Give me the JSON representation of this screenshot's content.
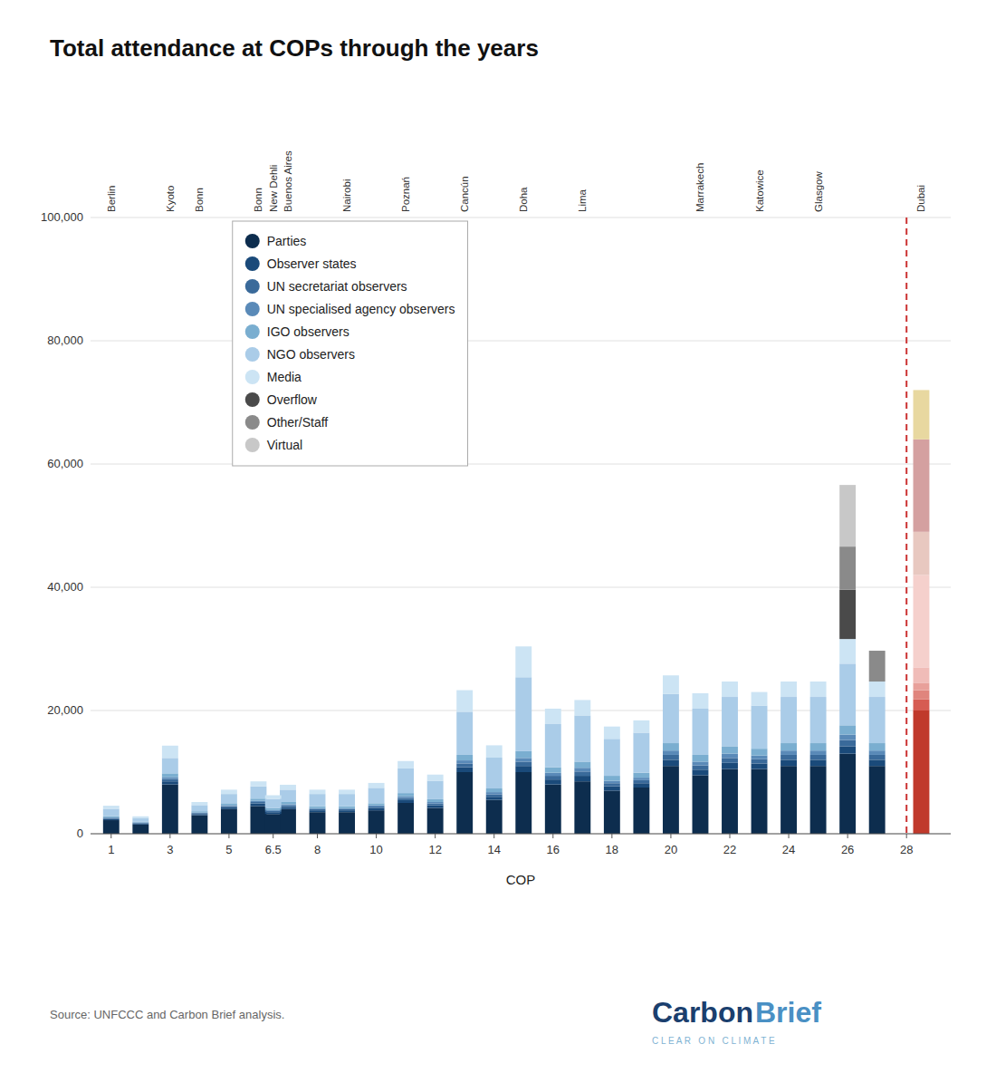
{
  "chart_data": {
    "type": "bar",
    "stacked": true,
    "title": "Total attendance at COPs through the years",
    "x_label": "COP",
    "source": "Source: UNFCCC and Carbon Brief analysis.",
    "x": [
      1,
      2,
      3,
      4,
      5,
      6,
      6.5,
      7,
      8,
      9,
      10,
      11,
      12,
      13,
      14,
      15,
      16,
      17,
      18,
      19,
      20,
      21,
      22,
      23,
      24,
      25,
      26,
      27,
      28.5
    ],
    "xlim": [
      0.3,
      29.5
    ],
    "xticks": [
      1,
      3,
      5,
      6.5,
      8,
      10,
      12,
      14,
      16,
      18,
      20,
      22,
      24,
      26,
      28
    ],
    "x2lim": [
      0.3,
      29.5
    ],
    "x2ticks": [
      {
        "value": 1,
        "label": "Berlin"
      },
      {
        "value": 3,
        "label": "Kyoto"
      },
      {
        "value": 4,
        "label": "Bonn"
      },
      {
        "value": 6,
        "label": "Bonn"
      },
      {
        "value": 6.5,
        "label": "New Dehli"
      },
      {
        "value": 7,
        "label": "Buenos Aires"
      },
      {
        "value": 9,
        "label": "Nairobi"
      },
      {
        "value": 11,
        "label": "Poznań"
      },
      {
        "value": 13,
        "label": "Cancún"
      },
      {
        "value": 15,
        "label": "Doha"
      },
      {
        "value": 17,
        "label": "Lima"
      },
      {
        "value": 21,
        "label": "Marrakech"
      },
      {
        "value": 23,
        "label": "Katowice"
      },
      {
        "value": 25,
        "label": "Glasgow"
      },
      {
        "value": 28.5,
        "label": "Dubai"
      }
    ],
    "ylim": [
      0,
      100000
    ],
    "yticks": [
      0,
      {
        "value": 20000,
        "label": "20,000"
      },
      {
        "value": 40000,
        "label": "40,000"
      },
      {
        "value": 60000,
        "label": "60,000"
      },
      {
        "value": 80000,
        "label": "80,000"
      },
      {
        "value": 100000,
        "label": "100,000"
      }
    ],
    "grid": true,
    "legend": "upper left",
    "reference_lines": [
      {
        "x": 28,
        "color": "#cc3333",
        "line_style": "dashed"
      }
    ],
    "annotations": [
      {
        "text": "Carbon",
        "color": "#1b3f6e"
      },
      {
        "text": "Brief",
        "color": "#4a90c4"
      },
      {
        "text": "C L E A R   O N   C L I M A T E",
        "color": "#7fb3d3"
      }
    ],
    "series": [
      {
        "name": "Parties",
        "color": "#0d2d4e",
        "colors": [
          "#0d2d4e",
          "#0d2d4e",
          "#0d2d4e",
          "#0d2d4e",
          "#0d2d4e",
          "#0d2d4e",
          "#0d2d4e",
          "#0d2d4e",
          "#0d2d4e",
          "#0d2d4e",
          "#0d2d4e",
          "#0d2d4e",
          "#0d2d4e",
          "#0d2d4e",
          "#0d2d4e",
          "#0d2d4e",
          "#0d2d4e",
          "#0d2d4e",
          "#0d2d4e",
          "#0d2d4e",
          "#0d2d4e",
          "#0d2d4e",
          "#0d2d4e",
          "#0d2d4e",
          "#0d2d4e",
          "#0d2d4e",
          "#0d2d4e",
          "#0d2d4e",
          "#c0392b"
        ],
        "values": [
          2200,
          1500,
          8000,
          3000,
          4000,
          4500,
          3200,
          4000,
          3500,
          3500,
          3800,
          5000,
          4200,
          10000,
          5500,
          10000,
          8000,
          8500,
          7000,
          7500,
          11000,
          9500,
          10500,
          10500,
          11000,
          11000,
          13000,
          11000,
          20000
        ]
      },
      {
        "name": "Observer states",
        "color": "#1a4a7a",
        "colors": [
          "#1a4a7a",
          "#1a4a7a",
          "#1a4a7a",
          "#1a4a7a",
          "#1a4a7a",
          "#1a4a7a",
          "#1a4a7a",
          "#1a4a7a",
          "#1a4a7a",
          "#1a4a7a",
          "#1a4a7a",
          "#1a4a7a",
          "#1a4a7a",
          "#1a4a7a",
          "#1a4a7a",
          "#1a4a7a",
          "#1a4a7a",
          "#1a4a7a",
          "#1a4a7a",
          "#1a4a7a",
          "#1a4a7a",
          "#1a4a7a",
          "#1a4a7a",
          "#1a4a7a",
          "#1a4a7a",
          "#1a4a7a",
          "#1a4a7a",
          "#1a4a7a",
          "#d65c52"
        ],
        "values": [
          200,
          150,
          500,
          200,
          300,
          400,
          300,
          350,
          300,
          300,
          350,
          450,
          400,
          800,
          500,
          1000,
          800,
          900,
          700,
          700,
          1000,
          900,
          1000,
          900,
          1000,
          1000,
          1200,
          1000,
          1800
        ]
      },
      {
        "name": "UN secretariat observers",
        "color": "#3a6a9a",
        "colors": [
          "#3a6a9a",
          "#3a6a9a",
          "#3a6a9a",
          "#3a6a9a",
          "#3a6a9a",
          "#3a6a9a",
          "#3a6a9a",
          "#3a6a9a",
          "#3a6a9a",
          "#3a6a9a",
          "#3a6a9a",
          "#3a6a9a",
          "#3a6a9a",
          "#3a6a9a",
          "#3a6a9a",
          "#3a6a9a",
          "#3a6a9a",
          "#3a6a9a",
          "#3a6a9a",
          "#3a6a9a",
          "#3a6a9a",
          "#3a6a9a",
          "#3a6a9a",
          "#3a6a9a",
          "#3a6a9a",
          "#3a6a9a",
          "#3a6a9a",
          "#3a6a9a",
          "#e0857d"
        ],
        "values": [
          150,
          100,
          400,
          150,
          200,
          250,
          200,
          250,
          200,
          200,
          250,
          350,
          300,
          600,
          400,
          700,
          600,
          700,
          500,
          500,
          800,
          700,
          800,
          700,
          800,
          800,
          1000,
          800,
          1500
        ]
      },
      {
        "name": "UN specialised agency observers",
        "color": "#5a8ab8",
        "colors": [
          "#5a8ab8",
          "#5a8ab8",
          "#5a8ab8",
          "#5a8ab8",
          "#5a8ab8",
          "#5a8ab8",
          "#5a8ab8",
          "#5a8ab8",
          "#5a8ab8",
          "#5a8ab8",
          "#5a8ab8",
          "#5a8ab8",
          "#5a8ab8",
          "#5a8ab8",
          "#5a8ab8",
          "#5a8ab8",
          "#5a8ab8",
          "#5a8ab8",
          "#5a8ab8",
          "#5a8ab8",
          "#5a8ab8",
          "#5a8ab8",
          "#5a8ab8",
          "#5a8ab8",
          "#5a8ab8",
          "#5a8ab8",
          "#5a8ab8",
          "#5a8ab8",
          "#e8a09a"
        ],
        "values": [
          100,
          80,
          300,
          100,
          150,
          200,
          150,
          200,
          150,
          150,
          200,
          300,
          250,
          500,
          350,
          600,
          500,
          600,
          400,
          400,
          700,
          600,
          700,
          600,
          700,
          700,
          900,
          700,
          1200
        ]
      },
      {
        "name": "IGO observers",
        "color": "#7aaed0",
        "colors": [
          "#7aaed0",
          "#7aaed0",
          "#7aaed0",
          "#7aaed0",
          "#7aaed0",
          "#7aaed0",
          "#7aaed0",
          "#7aaed0",
          "#7aaed0",
          "#7aaed0",
          "#7aaed0",
          "#7aaed0",
          "#7aaed0",
          "#7aaed0",
          "#7aaed0",
          "#7aaed0",
          "#7aaed0",
          "#7aaed0",
          "#7aaed0",
          "#7aaed0",
          "#7aaed0",
          "#7aaed0",
          "#7aaed0",
          "#7aaed0",
          "#7aaed0",
          "#7aaed0",
          "#7aaed0",
          "#7aaed0",
          "#f0bcb8"
        ],
        "values": [
          200,
          150,
          600,
          200,
          300,
          350,
          300,
          350,
          300,
          300,
          350,
          500,
          450,
          900,
          600,
          1100,
          900,
          1000,
          800,
          800,
          1200,
          1100,
          1200,
          1100,
          1200,
          1200,
          1500,
          1200,
          2500
        ]
      },
      {
        "name": "NGO observers",
        "color": "#aacce8",
        "colors": [
          "#aacce8",
          "#aacce8",
          "#aacce8",
          "#aacce8",
          "#aacce8",
          "#aacce8",
          "#aacce8",
          "#aacce8",
          "#aacce8",
          "#aacce8",
          "#aacce8",
          "#aacce8",
          "#aacce8",
          "#aacce8",
          "#aacce8",
          "#aacce8",
          "#aacce8",
          "#aacce8",
          "#aacce8",
          "#aacce8",
          "#aacce8",
          "#aacce8",
          "#aacce8",
          "#aacce8",
          "#aacce8",
          "#aacce8",
          "#aacce8",
          "#aacce8",
          "#f5d0cc"
        ],
        "values": [
          1200,
          600,
          2500,
          1000,
          1500,
          2000,
          1500,
          2000,
          2000,
          2000,
          2500,
          4000,
          3000,
          7000,
          5000,
          12000,
          7000,
          7500,
          6000,
          6500,
          8000,
          7500,
          8000,
          7000,
          7500,
          7500,
          10000,
          7500,
          15000
        ]
      },
      {
        "name": "Media",
        "color": "#cce4f4",
        "colors": [
          "#cce4f4",
          "#cce4f4",
          "#cce4f4",
          "#cce4f4",
          "#cce4f4",
          "#cce4f4",
          "#cce4f4",
          "#cce4f4",
          "#cce4f4",
          "#cce4f4",
          "#cce4f4",
          "#cce4f4",
          "#cce4f4",
          "#cce4f4",
          "#cce4f4",
          "#cce4f4",
          "#cce4f4",
          "#cce4f4",
          "#cce4f4",
          "#cce4f4",
          "#cce4f4",
          "#cce4f4",
          "#cce4f4",
          "#cce4f4",
          "#cce4f4",
          "#cce4f4",
          "#cce4f4",
          "#cce4f4",
          "#e8c8c0"
        ],
        "values": [
          500,
          250,
          2000,
          500,
          700,
          800,
          600,
          800,
          700,
          700,
          800,
          1200,
          1000,
          3500,
          2000,
          5000,
          2500,
          2500,
          2000,
          2000,
          3000,
          2500,
          2500,
          2200,
          2500,
          2500,
          4000,
          2500,
          7000
        ]
      },
      {
        "name": "Overflow",
        "color": "#4a4a4a",
        "colors": [
          "#4a4a4a",
          "#4a4a4a",
          "#4a4a4a",
          "#4a4a4a",
          "#4a4a4a",
          "#4a4a4a",
          "#4a4a4a",
          "#4a4a4a",
          "#4a4a4a",
          "#4a4a4a",
          "#4a4a4a",
          "#4a4a4a",
          "#4a4a4a",
          "#4a4a4a",
          "#4a4a4a",
          "#4a4a4a",
          "#4a4a4a",
          "#4a4a4a",
          "#4a4a4a",
          "#4a4a4a",
          "#4a4a4a",
          "#4a4a4a",
          "#4a4a4a",
          "#4a4a4a",
          "#4a4a4a",
          "#4a4a4a",
          "#4a4a4a",
          "#4a4a4a",
          "#c87060"
        ],
        "values": [
          0,
          0,
          0,
          0,
          0,
          0,
          0,
          0,
          0,
          0,
          0,
          0,
          0,
          0,
          0,
          0,
          0,
          0,
          0,
          0,
          0,
          0,
          0,
          0,
          0,
          0,
          8000,
          0,
          0
        ]
      },
      {
        "name": "Other/Staff",
        "color": "#8a8a8a",
        "colors": [
          "#8a8a8a",
          "#8a8a8a",
          "#8a8a8a",
          "#8a8a8a",
          "#8a8a8a",
          "#8a8a8a",
          "#8a8a8a",
          "#8a8a8a",
          "#8a8a8a",
          "#8a8a8a",
          "#8a8a8a",
          "#8a8a8a",
          "#8a8a8a",
          "#8a8a8a",
          "#8a8a8a",
          "#8a8a8a",
          "#8a8a8a",
          "#8a8a8a",
          "#8a8a8a",
          "#8a8a8a",
          "#8a8a8a",
          "#8a8a8a",
          "#8a8a8a",
          "#8a8a8a",
          "#8a8a8a",
          "#8a8a8a",
          "#8a8a8a",
          "#8a8a8a",
          "#d4a0a0"
        ],
        "values": [
          0,
          0,
          0,
          0,
          0,
          0,
          0,
          0,
          0,
          0,
          0,
          0,
          0,
          0,
          0,
          0,
          0,
          0,
          0,
          0,
          0,
          0,
          0,
          0,
          0,
          0,
          7000,
          5000,
          15000
        ]
      },
      {
        "name": "Virtual",
        "color": "#c8c8c8",
        "colors": [
          "#c8c8c8",
          "#c8c8c8",
          "#c8c8c8",
          "#c8c8c8",
          "#c8c8c8",
          "#c8c8c8",
          "#c8c8c8",
          "#c8c8c8",
          "#c8c8c8",
          "#c8c8c8",
          "#c8c8c8",
          "#c8c8c8",
          "#c8c8c8",
          "#c8c8c8",
          "#c8c8c8",
          "#c8c8c8",
          "#c8c8c8",
          "#c8c8c8",
          "#c8c8c8",
          "#c8c8c8",
          "#c8c8c8",
          "#c8c8c8",
          "#c8c8c8",
          "#c8c8c8",
          "#c8c8c8",
          "#c8c8c8",
          "#c8c8c8",
          "#c8c8c8",
          "#e8d8a0"
        ],
        "values": [
          0,
          0,
          0,
          0,
          0,
          0,
          0,
          0,
          0,
          0,
          0,
          0,
          0,
          0,
          0,
          0,
          0,
          0,
          0,
          0,
          0,
          0,
          0,
          0,
          0,
          0,
          10000,
          0,
          8000
        ]
      }
    ]
  }
}
